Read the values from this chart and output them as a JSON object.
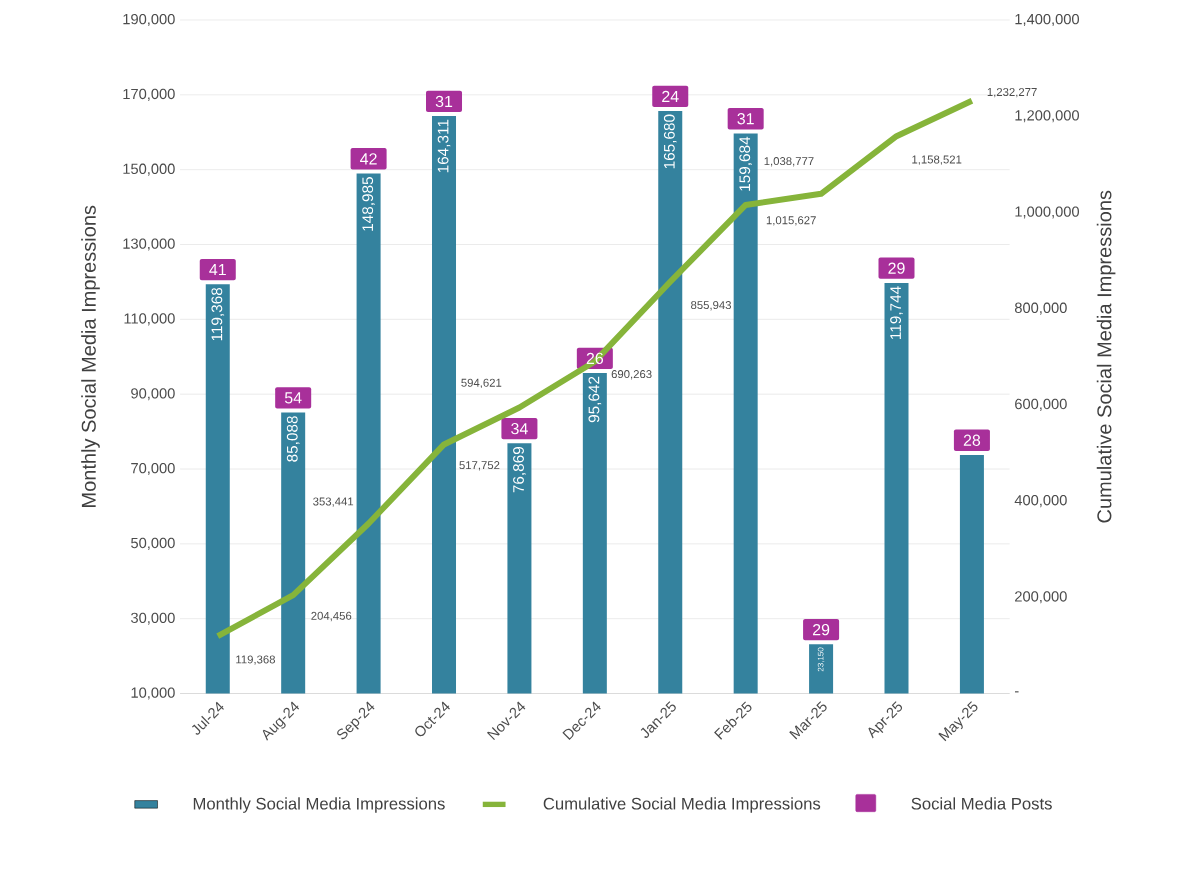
{
  "chart_data": {
    "type": "bar",
    "categories": [
      "Jul-24",
      "Aug-24",
      "Sep-24",
      "Oct-24",
      "Nov-24",
      "Dec-24",
      "Jan-25",
      "Feb-25",
      "Mar-25",
      "Apr-25",
      "May-25"
    ],
    "ylabel": "Monthly Social Media Impressions",
    "y2label": "Cumulative Social Media Impressions",
    "ylim": [
      10000,
      190000
    ],
    "yticks": [
      {
        "value": 10000,
        "label": "10,000"
      },
      {
        "value": 30000,
        "label": "30,000"
      },
      {
        "value": 50000,
        "label": "50,000"
      },
      {
        "value": 70000,
        "label": "70,000"
      },
      {
        "value": 90000,
        "label": "90,000"
      },
      {
        "value": 110000,
        "label": "110,000"
      },
      {
        "value": 130000,
        "label": "130,000"
      },
      {
        "value": 150000,
        "label": "150,000"
      },
      {
        "value": 170000,
        "label": "170,000"
      },
      {
        "value": 190000,
        "label": "190,000"
      }
    ],
    "y2lim": [
      0,
      1400000
    ],
    "y2ticks": [
      {
        "value": 0,
        "label": "-"
      },
      {
        "value": 200000,
        "label": "200,000"
      },
      {
        "value": 400000,
        "label": "400,000"
      },
      {
        "value": 600000,
        "label": "600,000"
      },
      {
        "value": 800000,
        "label": "800,000"
      },
      {
        "value": 1000000,
        "label": "1,000,000"
      },
      {
        "value": 1200000,
        "label": "1,200,000"
      },
      {
        "value": 1400000,
        "label": "1,400,000"
      }
    ],
    "grid": "y",
    "legend": "bottom",
    "series": [
      {
        "name": "Monthly Social Media Impressions",
        "color": "#34829e",
        "values": [
          119368,
          85088,
          148985,
          164311,
          76869,
          95642,
          165680,
          159684,
          23150,
          119744,
          73756
        ],
        "value_labels": [
          "119,368",
          "85,088",
          "148,985",
          "164,311",
          "76,869",
          "95,642",
          "165,680",
          "159,684",
          "23,150",
          "119,744",
          null
        ]
      },
      {
        "name": "Cumulative Social Media Impressions",
        "type": "line",
        "axis": "y2",
        "color": "#86b43a",
        "values": [
          119368,
          204456,
          353441,
          517752,
          594621,
          690263,
          855943,
          1015627,
          1038777,
          1158521,
          1232277
        ],
        "value_labels": [
          "119,368",
          "204,456",
          "353,441",
          "517,752",
          "594,621",
          "690,263",
          "855,943",
          "1,015,627",
          "1,038,777",
          "1,158,521",
          "1,232,277"
        ]
      }
    ],
    "annotations": [
      {
        "text": "41",
        "x": "Jul-24",
        "y": 119368
      },
      {
        "text": "54",
        "x": "Aug-24",
        "y": 85088
      },
      {
        "text": "42",
        "x": "Sep-24",
        "y": 148985
      },
      {
        "text": "31",
        "x": "Oct-24",
        "y": 164311
      },
      {
        "text": "34",
        "x": "Nov-24",
        "y": 76869
      },
      {
        "text": "26",
        "x": "Dec-24",
        "y": 95642
      },
      {
        "text": "24",
        "x": "Jan-25",
        "y": 165680
      },
      {
        "text": "31",
        "x": "Feb-25",
        "y": 159684
      },
      {
        "text": "29",
        "x": "Mar-25",
        "y": 23150
      },
      {
        "text": "29",
        "x": "Apr-25",
        "y": 119744
      },
      {
        "text": "28",
        "x": "May-25",
        "y": 73756
      },
      "Social Media Posts"
    ]
  }
}
